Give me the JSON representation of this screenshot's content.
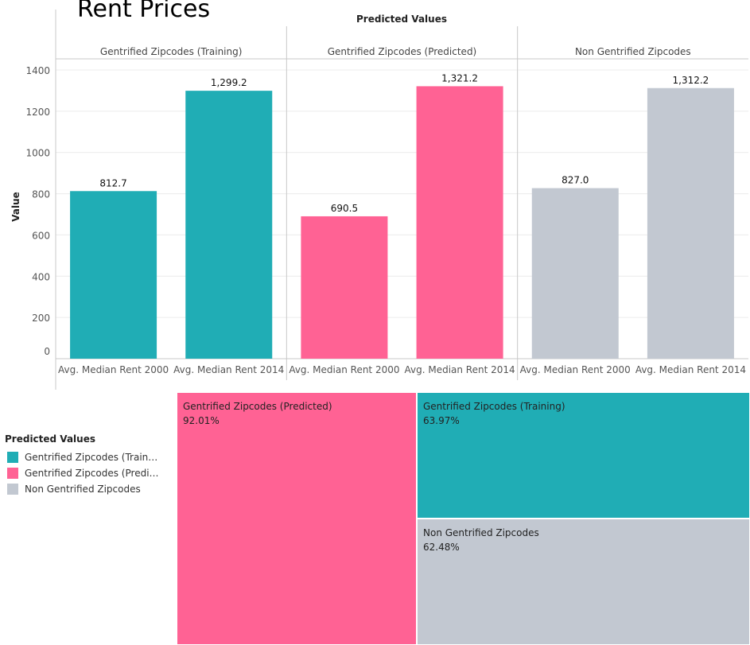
{
  "title": "Rent Prices",
  "colors": {
    "training": "#20adb5",
    "predicted": "#ff6294",
    "non": "#c2c8d1"
  },
  "chart_data": [
    {
      "type": "bar",
      "facet_title": "Predicted Values",
      "ylabel": "Value",
      "ylim": [
        0,
        1400
      ],
      "yticks": [
        "0",
        "200",
        "400",
        "600",
        "800",
        "1000",
        "1200",
        "1400"
      ],
      "panels": [
        {
          "name": "Gentrified Zipcodes (Training)",
          "color_key": "training",
          "categories": [
            "Avg. Median Rent 2000",
            "Avg. Median Rent 2014"
          ],
          "values": [
            812.7,
            1299.2
          ],
          "labels": [
            "812.7",
            "1,299.2"
          ]
        },
        {
          "name": "Gentrified Zipcodes (Predicted)",
          "color_key": "predicted",
          "categories": [
            "Avg. Median Rent 2000",
            "Avg. Median Rent 2014"
          ],
          "values": [
            690.5,
            1321.2
          ],
          "labels": [
            "690.5",
            "1,321.2"
          ]
        },
        {
          "name": "Non Gentrified Zipcodes",
          "color_key": "non",
          "categories": [
            "Avg. Median Rent 2000",
            "Avg. Median Rent 2014"
          ],
          "values": [
            827.0,
            1312.2
          ],
          "labels": [
            "827.0",
            "1,312.2"
          ]
        }
      ],
      "grid": true
    },
    {
      "type": "treemap",
      "cells": [
        {
          "label": "Gentrified Zipcodes (Predicted)",
          "value": 92.01,
          "pct": "92.01%",
          "color_key": "predicted"
        },
        {
          "label": "Gentrified Zipcodes (Training)",
          "value": 63.97,
          "pct": "63.97%",
          "color_key": "training"
        },
        {
          "label": "Non Gentrified Zipcodes",
          "value": 62.48,
          "pct": "62.48%",
          "color_key": "non"
        }
      ]
    }
  ],
  "legend": {
    "title": "Predicted Values",
    "items": [
      {
        "label": "Gentrified Zipcodes (Training)",
        "color_key": "training"
      },
      {
        "label": "Gentrified Zipcodes (Predicted)",
        "color_key": "predicted"
      },
      {
        "label": "Non Gentrified Zipcodes",
        "color_key": "non"
      }
    ]
  }
}
